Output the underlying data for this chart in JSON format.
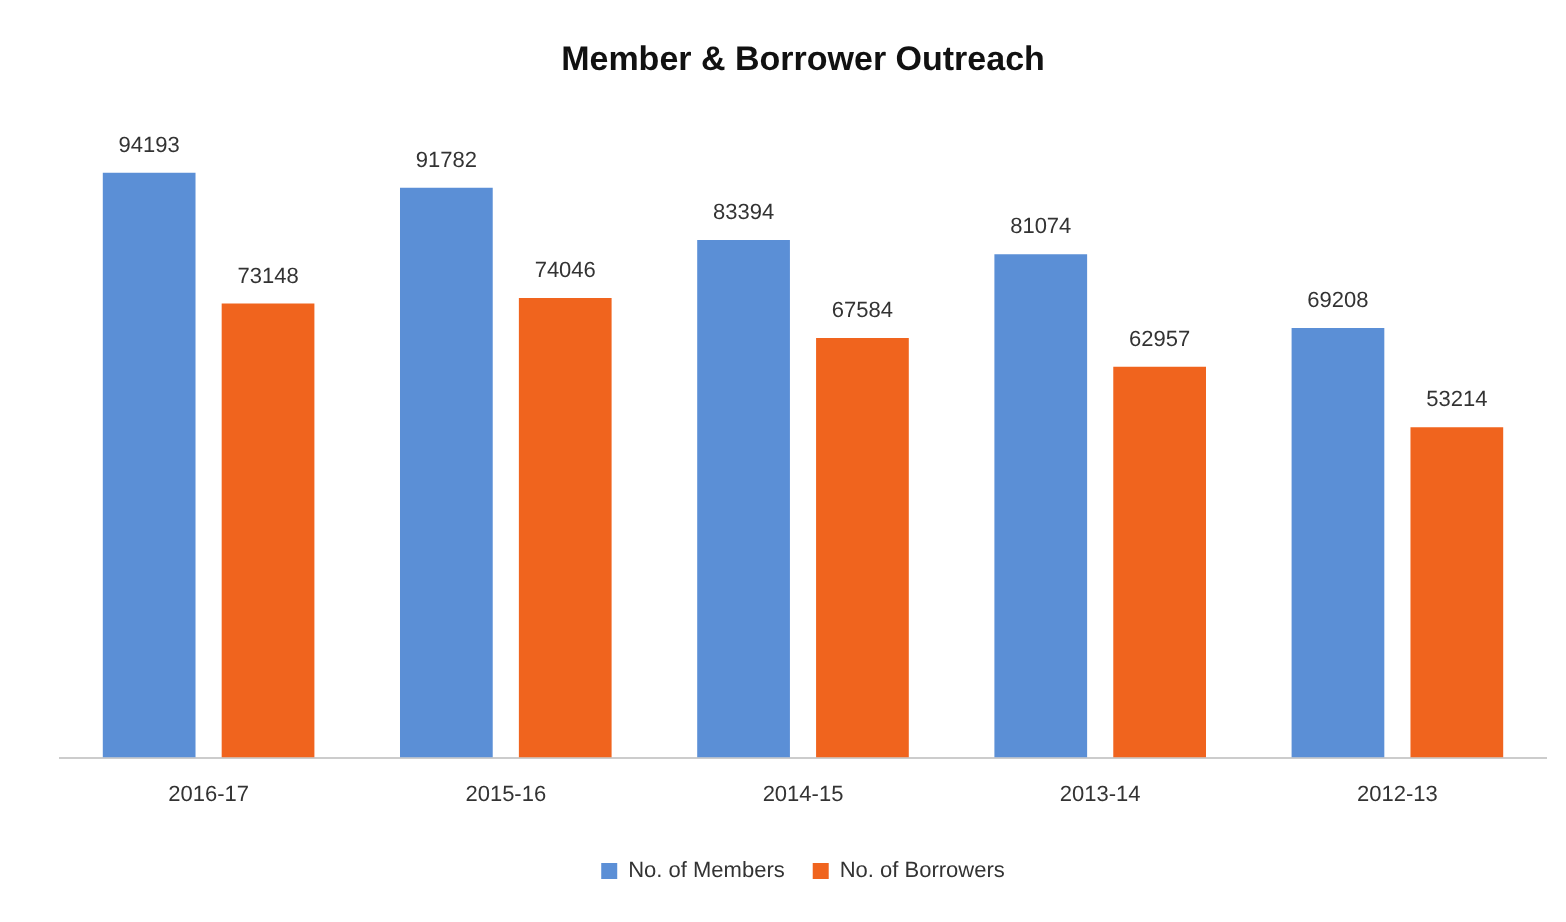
{
  "chart_data": {
    "type": "bar",
    "title": "Member & Borrower Outreach",
    "categories": [
      "2016-17",
      "2015-16",
      "2014-15",
      "2013-14",
      "2012-13"
    ],
    "series": [
      {
        "name": "No. of Members",
        "color": "#5b8fd6",
        "values": [
          94193,
          91782,
          83394,
          81074,
          69208
        ]
      },
      {
        "name": "No. of Borrowers",
        "color": "#f0641e",
        "values": [
          73148,
          74046,
          67584,
          62957,
          53214
        ]
      }
    ],
    "data_labels": true,
    "legend": "bottom",
    "grid": false,
    "tick_labels": "x"
  }
}
